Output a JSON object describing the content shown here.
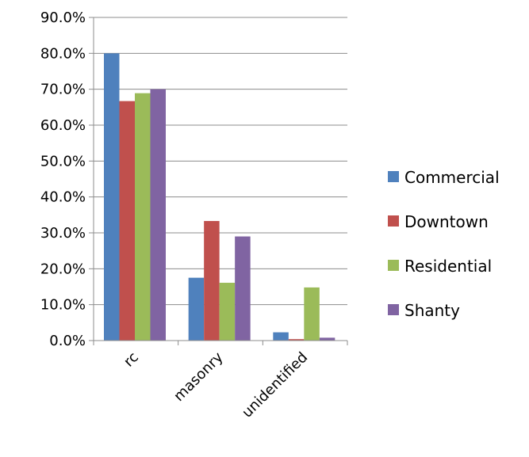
{
  "chart_data": {
    "type": "bar",
    "categories": [
      "rc",
      "masonry",
      "unidentified"
    ],
    "series": [
      {
        "name": "Commercial",
        "values": [
          80.0,
          17.5,
          2.3
        ],
        "color": "#4F81BD"
      },
      {
        "name": "Downtown",
        "values": [
          66.7,
          33.3,
          0.4
        ],
        "color": "#C0504D"
      },
      {
        "name": "Residential",
        "values": [
          68.9,
          16.1,
          14.8
        ],
        "color": "#9BBB59"
      },
      {
        "name": "Shanty",
        "values": [
          70.0,
          29.0,
          0.8
        ],
        "color": "#8064A2"
      }
    ],
    "y_ticks": [
      "0.0%",
      "10.0%",
      "20.0%",
      "30.0%",
      "40.0%",
      "50.0%",
      "60.0%",
      "70.0%",
      "80.0%",
      "90.0%"
    ],
    "ylim": [
      0,
      90
    ],
    "grid": true,
    "legend_position": "right"
  }
}
